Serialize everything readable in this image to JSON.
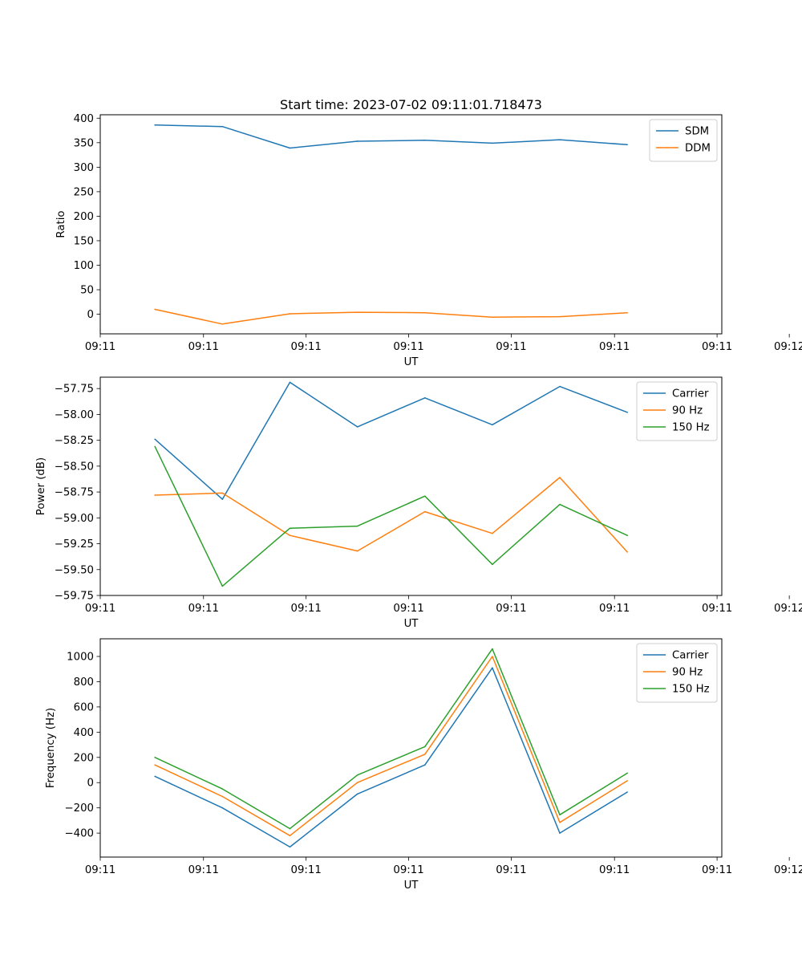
{
  "figure": {
    "title": "Start time: 2023-07-02 09:11:01.718473",
    "colors": {
      "blue": "#1f77b4",
      "orange": "#ff7f0e",
      "green": "#2ca02c"
    }
  },
  "chart_data": [
    {
      "type": "line",
      "title": "Start time: 2023-07-02 09:11:01.718473",
      "xlabel": "UT",
      "ylabel": "Ratio",
      "x": [
        1,
        2,
        3,
        4,
        5,
        6,
        7,
        8
      ],
      "xlim": [
        0.19,
        9.4
      ],
      "ylim": [
        -40,
        407
      ],
      "x_ticks": [
        0.19,
        1.72,
        3.24,
        4.76,
        6.28,
        7.81,
        9.33,
        10.4
      ],
      "x_tick_labels": [
        "09:11",
        "09:11",
        "09:11",
        "09:11",
        "09:11",
        "09:11",
        "09:11",
        "09:12"
      ],
      "y_ticks": [
        0,
        50,
        100,
        150,
        200,
        250,
        300,
        350,
        400
      ],
      "y_tick_labels": [
        "0",
        "50",
        "100",
        "150",
        "200",
        "250",
        "300",
        "350",
        "400"
      ],
      "legend": "top-right",
      "series": [
        {
          "name": "SDM",
          "color": "#1f77b4",
          "values": [
            386,
            383,
            339,
            353,
            355,
            349,
            356,
            346
          ]
        },
        {
          "name": "DDM",
          "color": "#ff7f0e",
          "values": [
            10,
            -20,
            1,
            4,
            3,
            -6,
            -5,
            3
          ]
        }
      ]
    },
    {
      "type": "line",
      "title": "",
      "xlabel": "UT",
      "ylabel": "Power (dB)",
      "x": [
        1,
        2,
        3,
        4,
        5,
        6,
        7,
        8
      ],
      "xlim": [
        0.19,
        9.4
      ],
      "ylim": [
        -59.75,
        -57.64
      ],
      "x_ticks": [
        0.19,
        1.72,
        3.24,
        4.76,
        6.28,
        7.81,
        9.33,
        10.4
      ],
      "x_tick_labels": [
        "09:11",
        "09:11",
        "09:11",
        "09:11",
        "09:11",
        "09:11",
        "09:11",
        "09:12"
      ],
      "y_ticks": [
        -59.75,
        -59.5,
        -59.25,
        -59.0,
        -58.75,
        -58.5,
        -58.25,
        -58.0,
        -57.75
      ],
      "y_tick_labels": [
        "−59.75",
        "−59.50",
        "−59.25",
        "−59.00",
        "−58.75",
        "−58.50",
        "−58.25",
        "−58.00",
        "−57.75"
      ],
      "legend": "top-right",
      "series": [
        {
          "name": "Carrier",
          "color": "#1f77b4",
          "values": [
            -58.24,
            -58.82,
            -57.69,
            -58.12,
            -57.84,
            -58.1,
            -57.73,
            -57.98
          ]
        },
        {
          "name": "90 Hz",
          "color": "#ff7f0e",
          "values": [
            -58.78,
            -58.76,
            -59.17,
            -59.32,
            -58.94,
            -59.15,
            -58.61,
            -59.33
          ]
        },
        {
          "name": "150 Hz",
          "color": "#2ca02c",
          "values": [
            -58.31,
            -59.66,
            -59.1,
            -59.08,
            -58.79,
            -59.45,
            -58.87,
            -59.17
          ]
        }
      ]
    },
    {
      "type": "line",
      "title": "",
      "xlabel": "UT",
      "ylabel": "Frequency (Hz)",
      "x": [
        1,
        2,
        3,
        4,
        5,
        6,
        7,
        8
      ],
      "xlim": [
        0.19,
        9.4
      ],
      "ylim": [
        -590,
        1140
      ],
      "x_ticks": [
        0.19,
        1.72,
        3.24,
        4.76,
        6.28,
        7.81,
        9.33,
        10.4
      ],
      "x_tick_labels": [
        "09:11",
        "09:11",
        "09:11",
        "09:11",
        "09:11",
        "09:11",
        "09:11",
        "09:12"
      ],
      "y_ticks": [
        -400,
        -200,
        0,
        200,
        400,
        600,
        800,
        1000
      ],
      "y_tick_labels": [
        "−400",
        "−200",
        "0",
        "200",
        "400",
        "600",
        "800",
        "1000"
      ],
      "legend": "top-right",
      "series": [
        {
          "name": "Carrier",
          "color": "#1f77b4",
          "values": [
            50,
            -200,
            -510,
            -90,
            140,
            910,
            -400,
            -75
          ]
        },
        {
          "name": "90 Hz",
          "color": "#ff7f0e",
          "values": [
            140,
            -110,
            -420,
            0,
            225,
            1000,
            -315,
            15
          ]
        },
        {
          "name": "150 Hz",
          "color": "#2ca02c",
          "values": [
            200,
            -50,
            -365,
            60,
            285,
            1060,
            -255,
            75
          ]
        }
      ]
    }
  ]
}
